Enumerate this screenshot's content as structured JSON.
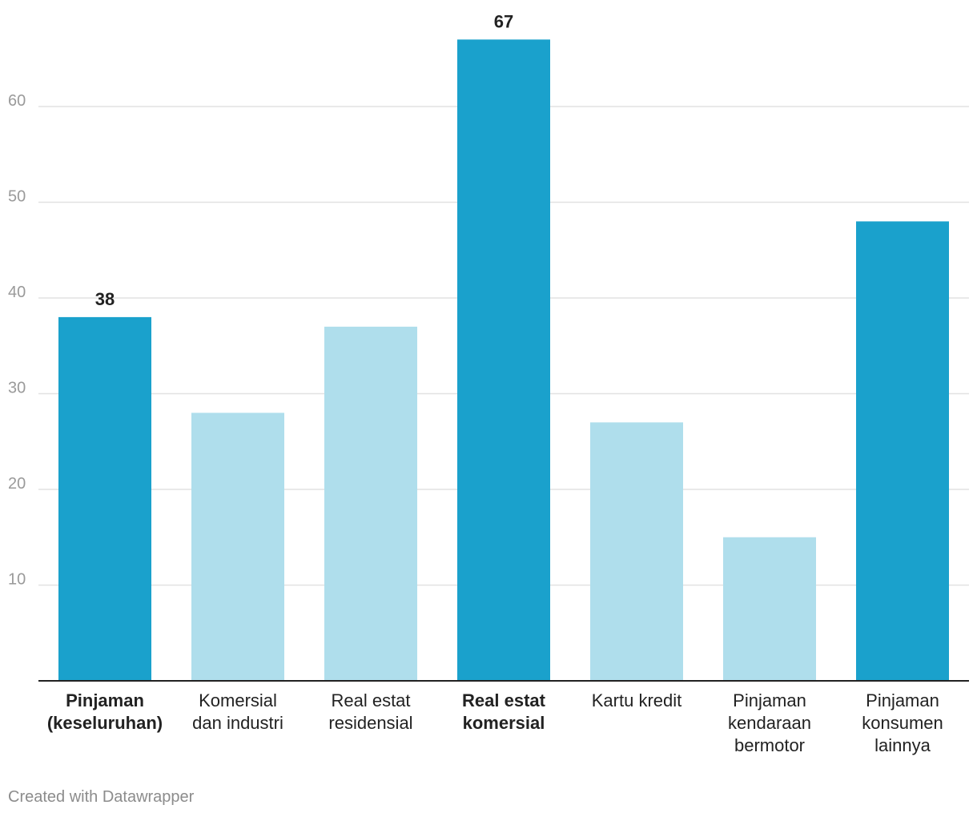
{
  "chart_data": {
    "type": "bar",
    "title": "",
    "xlabel": "",
    "ylabel": "",
    "ylim": [
      0,
      70
    ],
    "yticks": [
      10,
      20,
      30,
      40,
      50,
      60
    ],
    "grid": true,
    "categories": [
      [
        "Pinjaman",
        "(keseluruhan)"
      ],
      [
        "Komersial",
        "dan industri"
      ],
      [
        "Real estat",
        "residensial"
      ],
      [
        "Real estat",
        "komersial"
      ],
      [
        "Kartu kredit"
      ],
      [
        "Pinjaman",
        "kendaraan",
        "bermotor"
      ],
      [
        "Pinjaman",
        "konsumen",
        "lainnya"
      ]
    ],
    "values": [
      38,
      28,
      37,
      67,
      27,
      15,
      48
    ],
    "highlighted": [
      true,
      false,
      false,
      true,
      false,
      false,
      true
    ],
    "show_value_label": [
      true,
      false,
      false,
      true,
      false,
      false,
      false
    ],
    "bold_label": [
      true,
      false,
      false,
      true,
      false,
      false,
      false
    ],
    "colors": {
      "highlight": "#1aa1cc",
      "normal": "#afdeec",
      "grid": "#e2e2e2",
      "tick_text": "#9a9a9a",
      "axis": "#222222",
      "label_text": "#222222"
    }
  },
  "credit": "Created with Datawrapper"
}
